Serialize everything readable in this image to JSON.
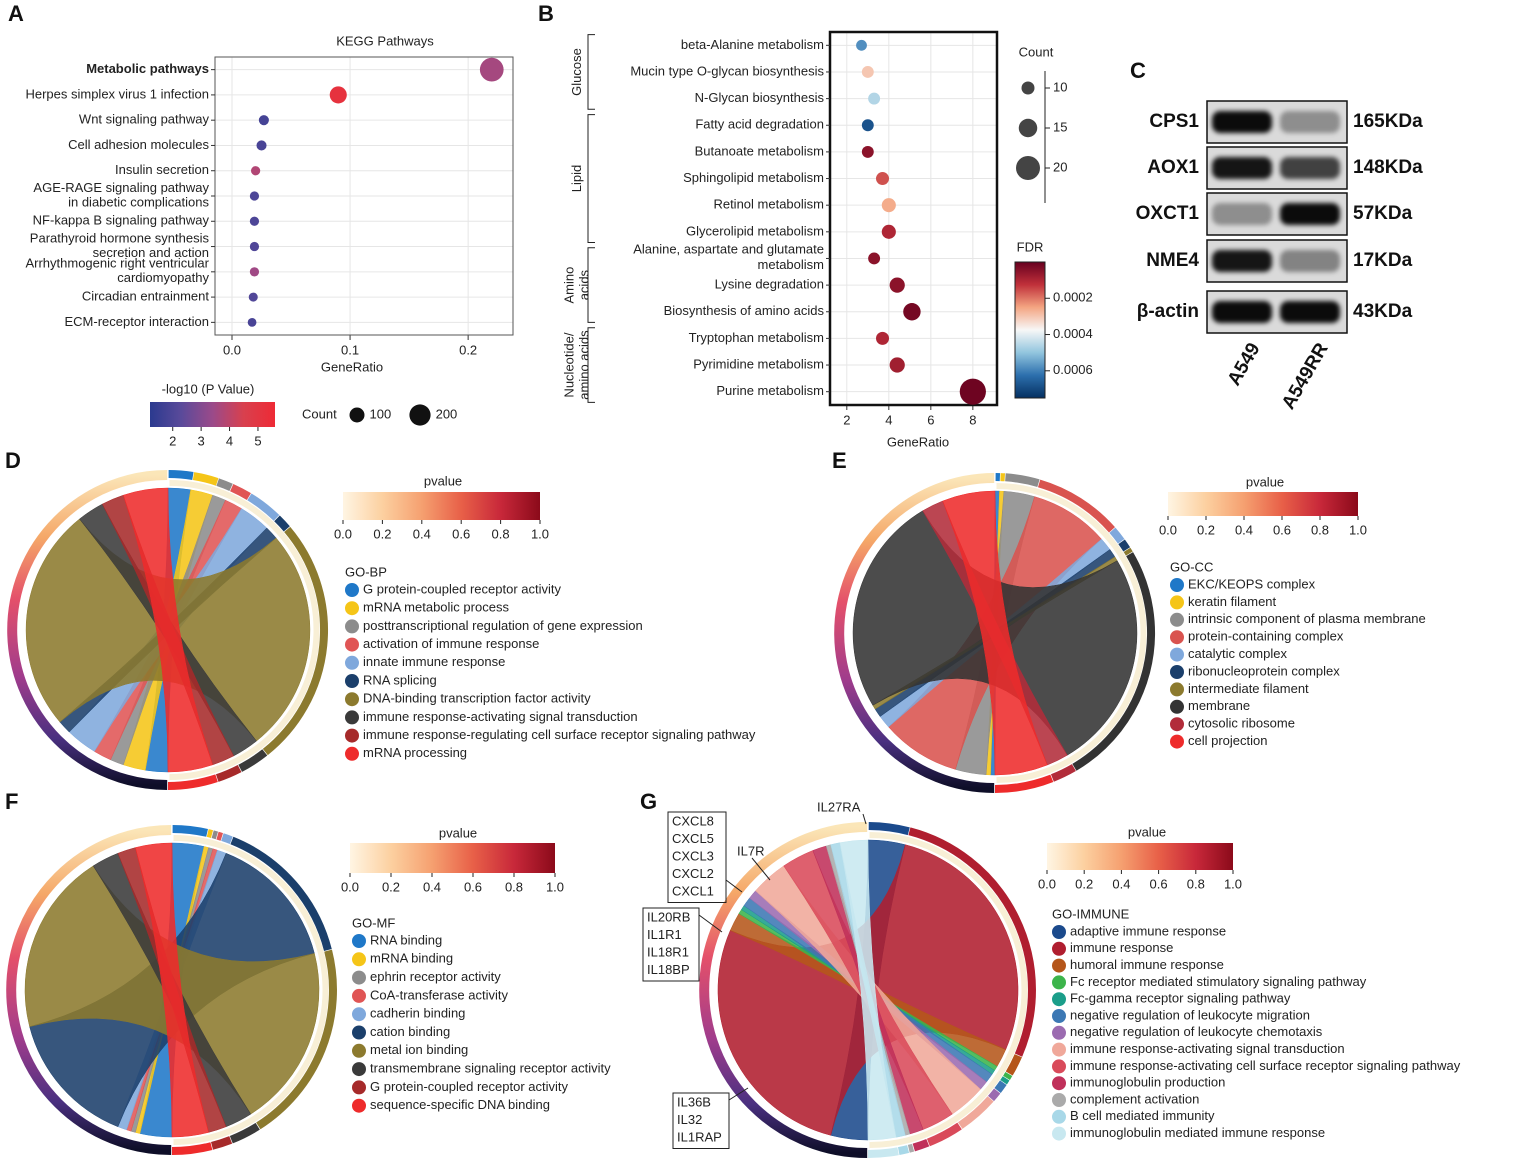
{
  "chart_data": [
    {
      "type": "dot",
      "label": "A",
      "title": "KEGG Pathways",
      "categories": [
        "Metabolic pathways",
        "Herpes simplex virus 1 infection",
        "Wnt signaling pathway",
        "Cell adhesion molecules",
        "Insulin secretion",
        [
          "AGE-RAGE signaling pathway",
          "in diabetic complications"
        ],
        "NF-kappa B signaling pathway",
        [
          "Parathyroid hormone synthesis",
          "secretion and action"
        ],
        [
          "Arrhythmogenic right ventricular",
          "cardiomyopathy"
        ],
        "Circadian entrainment",
        "ECM-receptor interaction"
      ],
      "label_colors": [
        "#e8202a",
        "#222222",
        "#222222",
        "#222222",
        "#222222",
        "#222222",
        "#222222",
        "#222222",
        "#222222",
        "#222222",
        "#222222"
      ],
      "values": [
        0.22,
        0.09,
        0.027,
        0.025,
        0.02,
        0.019,
        0.019,
        0.019,
        0.019,
        0.018,
        0.017
      ],
      "sizes": [
        250,
        130,
        45,
        45,
        38,
        38,
        38,
        38,
        38,
        36,
        34
      ],
      "color_values": [
        3.6,
        5.2,
        1.8,
        1.9,
        3.8,
        2.0,
        2.0,
        2.1,
        3.5,
        2.1,
        1.9
      ],
      "xlabel": "GeneRatio",
      "xlim": [
        -0.0144,
        0.238
      ],
      "xticks": [
        {
          "value": 0,
          "label": "0.0"
        },
        0.1,
        0.2
      ],
      "grid": true,
      "frame_color": "#555555",
      "colorbar": {
        "title": "-log10 (P Value)",
        "lim": [
          1.2,
          5.6
        ],
        "ticks": [
          2,
          3,
          4,
          5
        ],
        "colormap": [
          "#2b3a8f",
          "#5a4a9a",
          "#9a4a8a",
          "#d8404e",
          "#ee2a35"
        ]
      },
      "size_legend": {
        "title": "Count",
        "values": [
          100,
          200
        ]
      }
    },
    {
      "type": "dot",
      "label": "B",
      "categories": [
        "beta-Alanine metabolism",
        "Mucin type O-glycan biosynthesis",
        "N-Glycan biosynthesis",
        "Fatty acid degradation",
        "Butanoate metabolism",
        "Sphingolipid metabolism",
        "Retinol metabolism",
        "Glycerolipid metabolism",
        [
          "Alanine, aspartate and glutamate",
          "metabolism"
        ],
        "Lysine degradation",
        "Biosynthesis of amino acids",
        "Tryptophan metabolism",
        "Pyrimidine metabolism",
        "Purine metabolism"
      ],
      "values": [
        2.7,
        3.0,
        3.3,
        3.0,
        3.0,
        3.7,
        4.0,
        4.0,
        3.3,
        4.4,
        5.1,
        3.7,
        4.4,
        8.0
      ],
      "sizes": [
        8,
        9,
        9,
        9,
        9,
        10,
        11,
        11,
        9,
        12,
        14,
        10,
        12,
        22
      ],
      "color_values": [
        0.00058,
        0.0003,
        0.00046,
        0.00068,
        5e-05,
        0.00016,
        0.00026,
        0.0001,
        5e-05,
        5e-05,
        2e-05,
        0.0001,
        8e-05,
        1e-05
      ],
      "groups": [
        {
          "name": [
            "Glucose"
          ],
          "span": [
            0,
            2
          ]
        },
        {
          "name": [
            "Lipid"
          ],
          "span": [
            3,
            7
          ]
        },
        {
          "name": [
            "Amino",
            "acids"
          ],
          "span": [
            8,
            10
          ]
        },
        {
          "name": [
            "Nucleotide/",
            "amino acids"
          ],
          "span": [
            11,
            13
          ]
        }
      ],
      "xlabel": "GeneRatio",
      "xlim": [
        1.2,
        9.15
      ],
      "xticks": [
        2,
        4,
        6,
        8
      ],
      "grid": true,
      "frame_color": "#111111",
      "colorbar": {
        "title": "FDR",
        "lim": [
          0,
          0.00075
        ],
        "ticks": [
          0.0002,
          0.0004,
          0.0006
        ],
        "colormap": [
          "#67001f",
          "#c0303a",
          "#f4a582",
          "#f7f7f7",
          "#92c5de",
          "#2c6fad",
          "#053061"
        ]
      },
      "size_legend": {
        "title": "Count",
        "values": [
          10,
          15,
          20
        ]
      }
    },
    {
      "type": "blot",
      "label": "C",
      "lanes": [
        "A549",
        "A549RR"
      ],
      "rows": [
        {
          "name": "CPS1",
          "size": "165KDa",
          "intensity": [
            0.95,
            0.35
          ]
        },
        {
          "name": "AOX1",
          "size": "148KDa",
          "intensity": [
            0.9,
            0.7
          ]
        },
        {
          "name": "OXCT1",
          "size": "57KDa",
          "intensity": [
            0.35,
            0.95
          ]
        },
        {
          "name": "NME4",
          "size": "17KDa",
          "intensity": [
            0.9,
            0.4
          ]
        },
        {
          "name": "β-actin",
          "size": "43KDa",
          "intensity": [
            0.95,
            0.95
          ]
        }
      ]
    },
    {
      "type": "chord",
      "label": "D",
      "legend_title": "GO-BP",
      "categories": [
        "G protein-coupled receptor activity",
        "mRNA metabolic process",
        "posttranscriptional regulation of gene expression",
        "activation of immune response",
        "innate immune response",
        "RNA splicing",
        "DNA-binding transcription factor activity",
        "immune response-activating signal transduction",
        "immune response-regulating cell surface receptor signaling pathway",
        "mRNA processing"
      ],
      "colors": [
        "#1f78c8",
        "#f5c518",
        "#8c8c8c",
        "#e05555",
        "#7fa8dc",
        "#1b3f6b",
        "#8c7a2e",
        "#3a3a3a",
        "#a62a2a",
        "#ee2b2b"
      ],
      "values": [
        0.05,
        0.05,
        0.03,
        0.04,
        0.07,
        0.03,
        0.5,
        0.06,
        0.05,
        0.1
      ],
      "colorbar": {
        "title": "pvalue",
        "lim": [
          0,
          1
        ],
        "ticks": [
          {
            "value": 0,
            "label": "0.0"
          },
          0.2,
          0.4,
          0.6,
          0.8,
          {
            "value": 1,
            "label": "1.0"
          }
        ],
        "colormap": [
          "#fff5e3",
          "#fcd0a0",
          "#f5a070",
          "#e86048",
          "#c8283a",
          "#8b0a1a"
        ]
      }
    },
    {
      "type": "chord",
      "label": "E",
      "legend_title": "GO-CC",
      "categories": [
        "EKC/KEOPS complex",
        "keratin filament",
        "intrinsic component of plasma membrane",
        "protein-containing complex",
        "catalytic complex",
        "ribonucleoprotein complex",
        "intermediate filament",
        "membrane",
        "cytosolic ribosome",
        "cell projection"
      ],
      "colors": [
        "#1f78c8",
        "#f5c518",
        "#8c8c8c",
        "#d9534f",
        "#7fa8dc",
        "#1b3f6b",
        "#8c7a2e",
        "#333333",
        "#b22c3a",
        "#ee2b2b"
      ],
      "values": [
        0.01,
        0.01,
        0.07,
        0.18,
        0.03,
        0.02,
        0.01,
        0.5,
        0.05,
        0.12
      ],
      "colorbar": {
        "title": "pvalue",
        "lim": [
          0,
          1
        ],
        "ticks": [
          {
            "value": 0,
            "label": "0.0"
          },
          0.2,
          0.4,
          0.6,
          0.8,
          {
            "value": 1,
            "label": "1.0"
          }
        ],
        "colormap": [
          "#fff5e3",
          "#fcd0a0",
          "#f5a070",
          "#e86048",
          "#c8283a",
          "#8b0a1a"
        ]
      }
    },
    {
      "type": "chord",
      "label": "F",
      "legend_title": "GO-MF",
      "categories": [
        "RNA binding",
        "mRNA binding",
        "ephrin receptor activity",
        "CoA-transferase activity",
        "cadherin binding",
        "cation binding",
        "metal ion binding",
        "transmembrane signaling receptor activity",
        "G protein-coupled receptor activity",
        "sequence-specific DNA binding"
      ],
      "colors": [
        "#1f78c8",
        "#f5c518",
        "#8c8c8c",
        "#e05555",
        "#7fa8dc",
        "#1b3f6b",
        "#8c7a2e",
        "#3a3a3a",
        "#a62a2a",
        "#ee2b2b"
      ],
      "values": [
        0.07,
        0.01,
        0.01,
        0.01,
        0.02,
        0.3,
        0.4,
        0.06,
        0.04,
        0.08
      ],
      "colorbar": {
        "title": "pvalue",
        "lim": [
          0,
          1
        ],
        "ticks": [
          {
            "value": 0,
            "label": "0.0"
          },
          0.2,
          0.4,
          0.6,
          0.8,
          {
            "value": 1,
            "label": "1.0"
          }
        ],
        "colormap": [
          "#fff5e3",
          "#fcd0a0",
          "#f5a070",
          "#e86048",
          "#c8283a",
          "#8b0a1a"
        ]
      }
    },
    {
      "type": "chord",
      "label": "G",
      "legend_title": "GO-IMMUNE",
      "categories": [
        "adaptive immune response",
        "immune response",
        "humoral immune response",
        "Fc receptor mediated stimulatory signaling pathway",
        "Fc-gamma receptor signaling pathway",
        "negative regulation of leukocyte migration",
        "negative regulation of leukocyte chemotaxis",
        "immune response-activating signal transduction",
        "immune response-activating cell surface receptor signaling pathway",
        "immunoglobulin production",
        "complement activation",
        "B cell mediated immunity",
        "immunoglobulin mediated immune response"
      ],
      "colors": [
        "#1b4a8c",
        "#b01e2f",
        "#b5561a",
        "#3cb44b",
        "#1b9e8a",
        "#3c78b4",
        "#9b6bb0",
        "#f0a89a",
        "#d94a5a",
        "#c0305a",
        "#aaaaaa",
        "#a8d8e8",
        "#c8e8f0"
      ],
      "values": [
        0.08,
        0.55,
        0.04,
        0.01,
        0.01,
        0.02,
        0.02,
        0.08,
        0.07,
        0.03,
        0.01,
        0.02,
        0.06
      ],
      "gene_labels": [
        [
          "IL27RA"
        ],
        [
          "IL7R"
        ],
        [
          "CXCL8",
          "CXCL5",
          "CXCL3",
          "CXCL2",
          "CXCL1"
        ],
        [
          "IL20RB",
          "IL1R1",
          "IL18R1",
          "IL18BP"
        ],
        [
          "IL36B",
          "IL32",
          "IL1RAP"
        ]
      ],
      "colorbar": {
        "title": "pvalue",
        "lim": [
          0,
          1
        ],
        "ticks": [
          {
            "value": 0,
            "label": "0.0"
          },
          0.2,
          0.4,
          0.6,
          0.8,
          {
            "value": 1,
            "label": "1.0"
          }
        ],
        "colormap": [
          "#fff5e3",
          "#fcd0a0",
          "#f5a070",
          "#e86048",
          "#c8283a",
          "#8b0a1a"
        ]
      }
    }
  ]
}
